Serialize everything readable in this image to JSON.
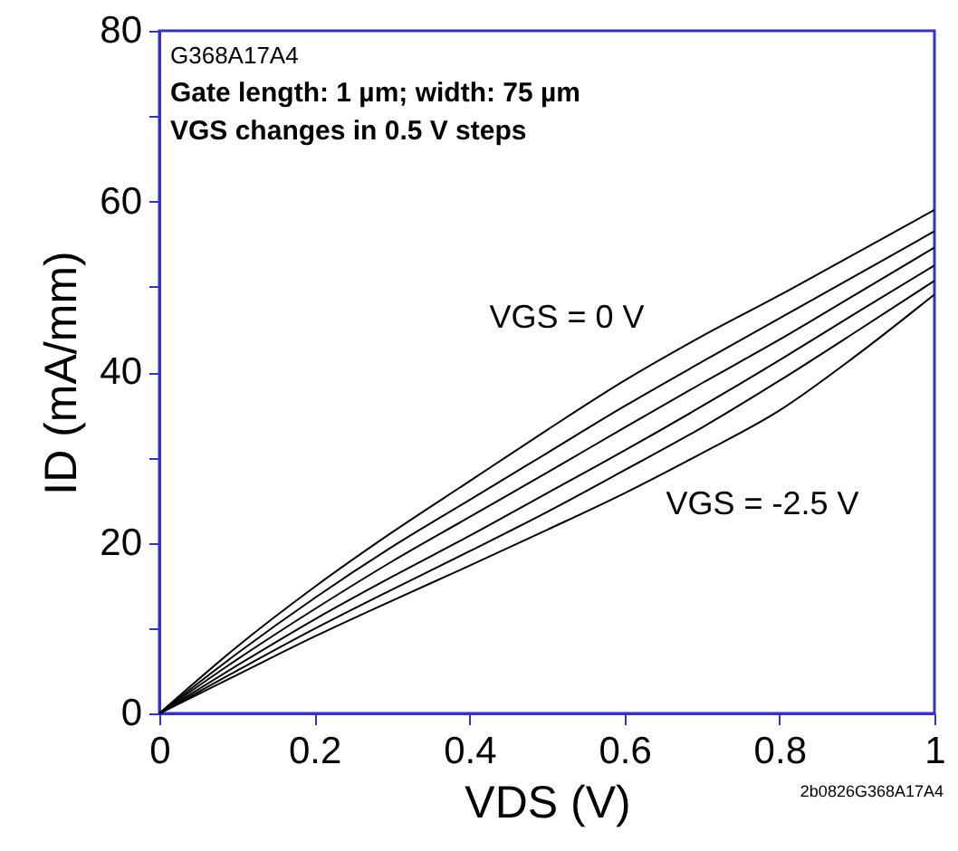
{
  "chart_data": {
    "type": "line",
    "xlabel": "VDS (V)",
    "ylabel": "ID (mA/mm)",
    "x": [
      0,
      0.1,
      0.2,
      0.3,
      0.4,
      0.5,
      0.6,
      0.7,
      0.8,
      0.9,
      1.0
    ],
    "series": [
      {
        "color": "#000000",
        "values": [
          0,
          7.8,
          14.8,
          21.2,
          27.2,
          33.2,
          39,
          44.2,
          49,
          54,
          59
        ]
      },
      {
        "color": "#000000",
        "values": [
          0,
          7.0,
          13.5,
          19.5,
          25,
          30.5,
          36,
          41.2,
          46.3,
          51.4,
          56.5
        ]
      },
      {
        "color": "#000000",
        "values": [
          0,
          6.3,
          12.2,
          17.8,
          23,
          28.2,
          33.5,
          38.7,
          43.8,
          49.2,
          54.6
        ]
      },
      {
        "color": "#000000",
        "values": [
          0,
          5.6,
          11,
          16,
          20.8,
          25.8,
          30.8,
          36,
          41.4,
          47,
          52.5
        ]
      },
      {
        "color": "#000000",
        "values": [
          0,
          5,
          9.9,
          14.5,
          19,
          23.6,
          28.5,
          33.5,
          39,
          44.8,
          50.7
        ]
      },
      {
        "color": "#000000",
        "values": [
          0,
          4.5,
          9,
          13.2,
          17.3,
          21.5,
          25.8,
          30.5,
          35.5,
          42,
          49.1
        ]
      }
    ],
    "xlim": [
      0,
      1
    ],
    "xticks": [
      0,
      0.2,
      0.4,
      0.6,
      0.8,
      1
    ],
    "ylim": [
      0,
      80
    ],
    "yticks": [
      0,
      {
        "value": 10,
        "label": null
      },
      20,
      {
        "value": 30,
        "label": null
      },
      40,
      {
        "value": 50,
        "label": null
      },
      60,
      {
        "value": 70,
        "label": null
      },
      80
    ],
    "grid": false,
    "marker": "none",
    "line_style": "solid",
    "annotations": [
      "G368A17A4",
      "Gate length: 1 µm; width: 75 µm",
      "VGS changes in 0.5 V steps",
      "VGS = 0 V",
      "VGS = -2.5 V",
      "2b0826G368A17A4"
    ]
  }
}
